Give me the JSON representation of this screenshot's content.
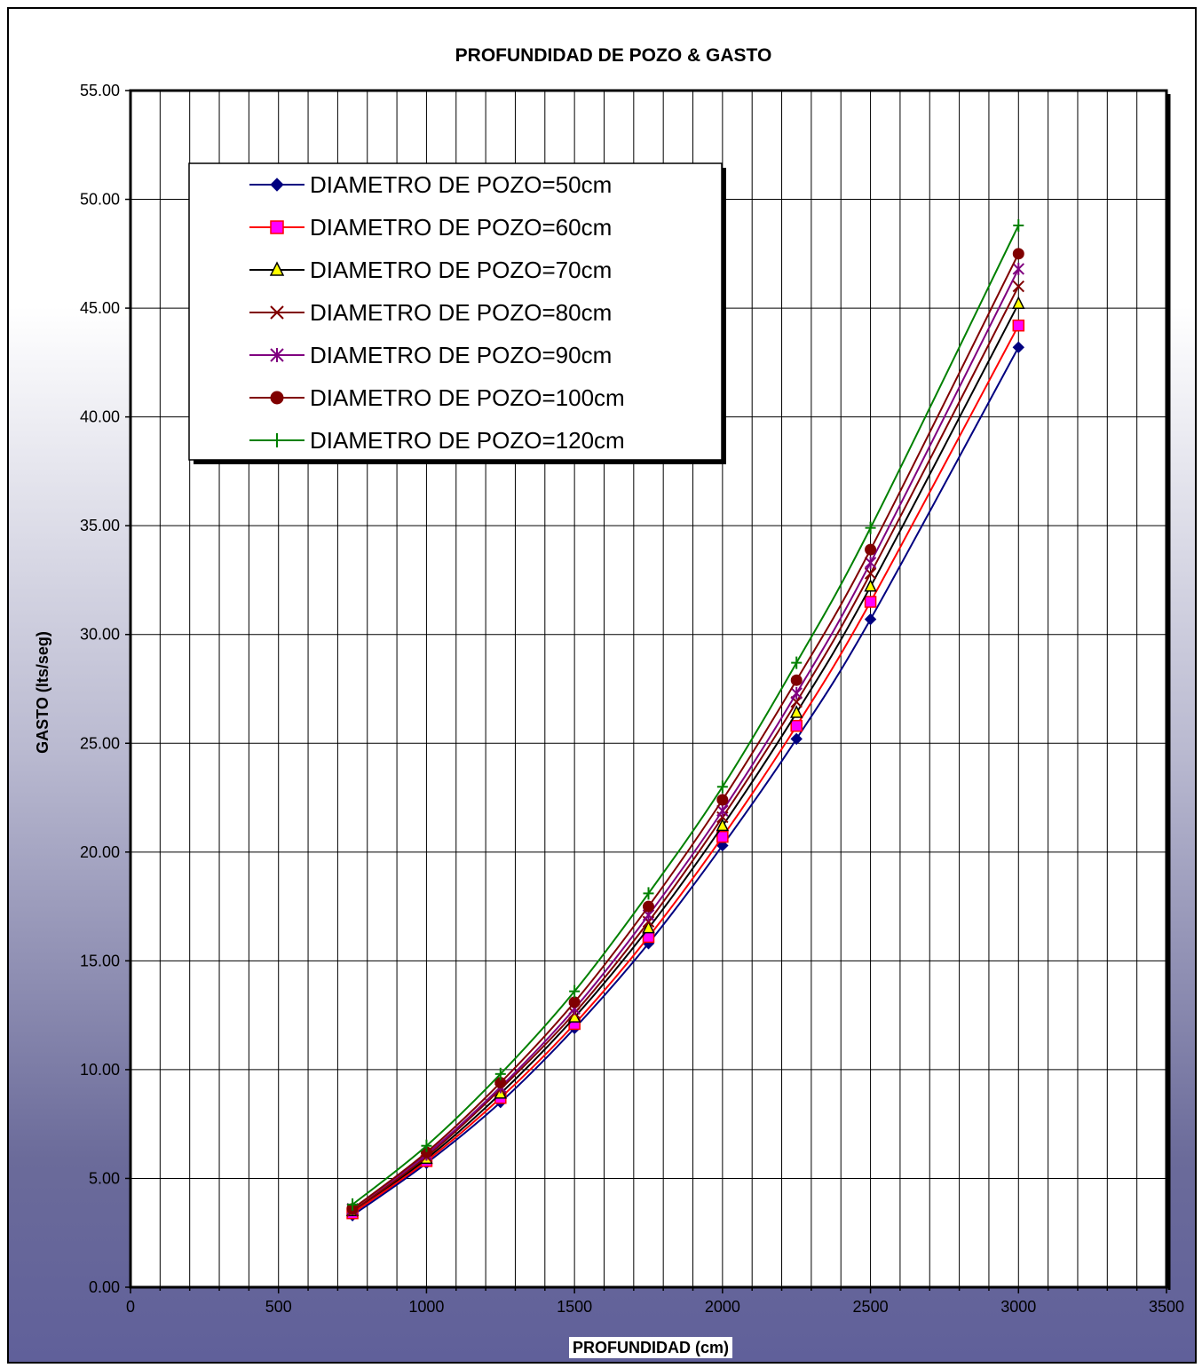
{
  "chart_data": {
    "type": "line",
    "title": "PROFUNDIDAD DE POZO & GASTO",
    "xlabel": "PROFUNDIDAD (cm)",
    "ylabel": "GASTO (lts/seg)",
    "xlim": [
      0,
      3500
    ],
    "ylim": [
      0,
      55
    ],
    "xticks": [
      "0",
      "500",
      "1000",
      "1500",
      "2000",
      "2500",
      "3000",
      "3500"
    ],
    "yticks": [
      "0.00",
      "5.00",
      "10.00",
      "15.00",
      "20.00",
      "25.00",
      "30.00",
      "35.00",
      "40.00",
      "45.00",
      "50.00",
      "55.00"
    ],
    "x": [
      750,
      1000,
      1250,
      1500,
      1750,
      2000,
      2250,
      2500,
      3000
    ],
    "grid": true,
    "legend_position": "top-left",
    "series": [
      {
        "name": "DIAMETRO DE POZO=50cm",
        "color": "#000080",
        "marker": "diamond",
        "values": [
          3.3,
          5.7,
          8.5,
          11.9,
          15.8,
          20.3,
          25.2,
          30.7,
          43.2
        ]
      },
      {
        "name": "DIAMETRO DE POZO=60cm",
        "color": "#ff0000",
        "marker": "square",
        "values": [
          3.4,
          5.8,
          8.7,
          12.1,
          16.1,
          20.7,
          25.8,
          31.5,
          44.2
        ]
      },
      {
        "name": "DIAMETRO DE POZO=70cm",
        "color": "#000000",
        "marker": "triangle",
        "values": [
          3.5,
          5.9,
          8.9,
          12.4,
          16.5,
          21.2,
          26.4,
          32.2,
          45.2
        ]
      },
      {
        "name": "DIAMETRO DE POZO=80cm",
        "color": "#800000",
        "marker": "x",
        "values": [
          3.5,
          6.0,
          9.1,
          12.6,
          16.8,
          21.6,
          26.9,
          32.8,
          46.0
        ]
      },
      {
        "name": "DIAMETRO DE POZO=90cm",
        "color": "#800080",
        "marker": "star",
        "values": [
          3.6,
          6.1,
          9.2,
          12.8,
          17.1,
          21.9,
          27.3,
          33.3,
          46.8
        ]
      },
      {
        "name": "DIAMETRO DE POZO=100cm",
        "color": "#800000",
        "marker": "circle",
        "values": [
          3.6,
          6.2,
          9.4,
          13.1,
          17.5,
          22.4,
          27.9,
          33.9,
          47.5
        ]
      },
      {
        "name": "DIAMETRO DE POZO=120cm",
        "color": "#008000",
        "marker": "plus",
        "values": [
          3.8,
          6.5,
          9.8,
          13.6,
          18.1,
          23.0,
          28.7,
          34.9,
          48.8
        ]
      }
    ]
  }
}
